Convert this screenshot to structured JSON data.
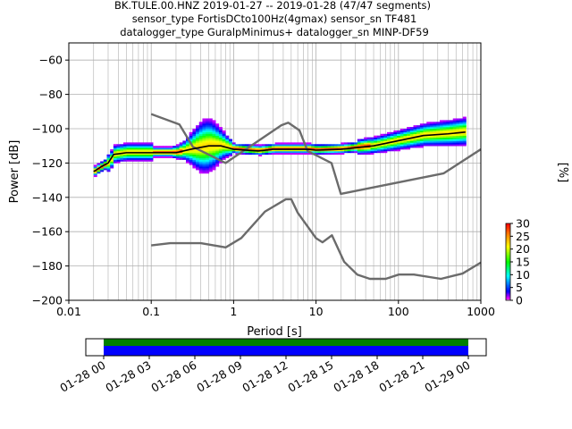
{
  "title_lines": [
    "BK.TULE.00.HNZ   2019-01-27 -- 2019-01-28  (47/47 segments)",
    "sensor_type FortisDCto100Hz(4gmax) sensor_sn TF481",
    "datalogger_type GuralpMinimus+ datalogger_sn MINP-DF59"
  ],
  "colors": {
    "noise_model": "#6b6b6b",
    "mean_line": "#000000",
    "timeline_top": "#008000",
    "timeline_bottom": "#0000ff"
  },
  "chart_data": [
    {
      "type": "heatmap",
      "xlabel": "Period [s]",
      "ylabel": "Power [dB]",
      "x_scale": "log",
      "xlim": [
        0.01,
        1000
      ],
      "ylim": [
        -200,
        -50
      ],
      "x_ticks": [
        0.01,
        0.1,
        1,
        10,
        100,
        1000
      ],
      "x_tick_labels": [
        "0.01",
        "0.1",
        "1",
        "10",
        "100",
        "1000"
      ],
      "y_ticks": [
        -200,
        -180,
        -160,
        -140,
        -120,
        -100,
        -80,
        -60
      ],
      "y_tick_labels": [
        "−200",
        "−180",
        "−160",
        "−140",
        "−120",
        "−100",
        "−80",
        "−60"
      ],
      "grid": true,
      "high_noise_model": [
        [
          0.1,
          -91.5
        ],
        [
          0.22,
          -97.5
        ],
        [
          0.32,
          -110.5
        ],
        [
          0.8,
          -120
        ],
        [
          3.8,
          -98
        ],
        [
          4.6,
          -96.5
        ],
        [
          6.3,
          -101
        ],
        [
          7.9,
          -113
        ],
        [
          15.4,
          -120
        ],
        [
          20,
          -138
        ],
        [
          354.8,
          -126
        ],
        [
          1000,
          -112
        ]
      ],
      "low_noise_model": [
        [
          0.1,
          -168
        ],
        [
          0.17,
          -166.7
        ],
        [
          0.4,
          -166.7
        ],
        [
          0.8,
          -169.2
        ],
        [
          1.24,
          -163.7
        ],
        [
          2.4,
          -148.3
        ],
        [
          4.3,
          -141.1
        ],
        [
          5,
          -141.1
        ],
        [
          6,
          -149
        ],
        [
          10,
          -163.8
        ],
        [
          12,
          -166.2
        ],
        [
          15.6,
          -162.1
        ],
        [
          21.9,
          -177.5
        ],
        [
          31.6,
          -185
        ],
        [
          45,
          -187.5
        ],
        [
          70,
          -187.5
        ],
        [
          101,
          -185
        ],
        [
          154,
          -185
        ],
        [
          328,
          -187.5
        ],
        [
          600,
          -184.4
        ],
        [
          1000,
          -178
        ]
      ],
      "mean_psd": [
        [
          0.02,
          -125
        ],
        [
          0.025,
          -122
        ],
        [
          0.03,
          -120
        ],
        [
          0.035,
          -115
        ],
        [
          0.05,
          -114
        ],
        [
          0.1,
          -114
        ],
        [
          0.2,
          -114
        ],
        [
          0.3,
          -112
        ],
        [
          0.5,
          -110
        ],
        [
          0.7,
          -110
        ],
        [
          1,
          -112
        ],
        [
          2,
          -113
        ],
        [
          3,
          -112
        ],
        [
          5,
          -112
        ],
        [
          8,
          -112
        ],
        [
          10,
          -112.5
        ],
        [
          20,
          -112
        ],
        [
          50,
          -110
        ],
        [
          100,
          -107
        ],
        [
          200,
          -104
        ],
        [
          400,
          -103
        ],
        [
          650,
          -102
        ]
      ],
      "colorbar": {
        "label": "[%]",
        "range": [
          0,
          30
        ],
        "ticks": [
          0,
          5,
          10,
          15,
          20,
          25,
          30
        ],
        "colormap": "pqlx"
      }
    },
    {
      "type": "timeline",
      "x_ticks": [
        "01-28 00",
        "01-28 03",
        "01-28 06",
        "01-28 09",
        "01-28 12",
        "01-28 15",
        "01-28 18",
        "01-28 21",
        "01-29 00"
      ],
      "segments_covered": "01-28 00 -- 01-29 00"
    }
  ]
}
